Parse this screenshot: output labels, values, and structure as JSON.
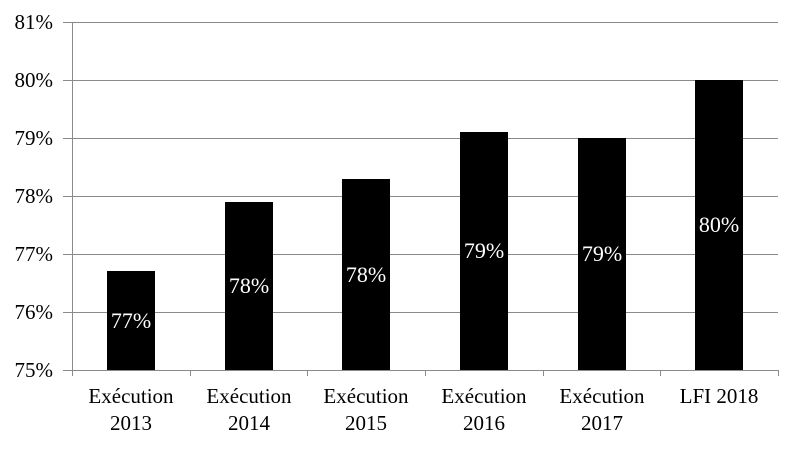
{
  "chart_data": {
    "type": "bar",
    "categories": [
      "Exécution 2013",
      "Exécution 2014",
      "Exécution 2015",
      "Exécution 2016",
      "Exécution 2017",
      "LFI 2018"
    ],
    "values": [
      76.7,
      77.9,
      78.3,
      79.1,
      79.0,
      80.0
    ],
    "bar_labels": [
      "77%",
      "78%",
      "78%",
      "79%",
      "79%",
      "80%"
    ],
    "bar_label_position": "center-inside",
    "y_tick_labels": [
      "75%",
      "76%",
      "77%",
      "78%",
      "79%",
      "80%",
      "81%"
    ],
    "ylim": [
      75,
      81
    ],
    "y_step": 1,
    "title": "",
    "xlabel": "",
    "ylabel": "",
    "legend": "none",
    "grid": "horizontal",
    "colors": {
      "bar_fill": "#000000",
      "bar_label_text": "#ffffff",
      "gridline": "#8a8a8a",
      "axis": "#8a8a8a",
      "tick": "#8a8a8a",
      "axis_text": "#000000",
      "background": "#ffffff"
    }
  }
}
